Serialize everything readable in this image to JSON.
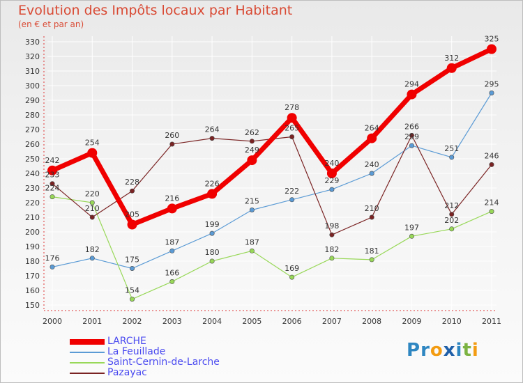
{
  "title": "Evolution des Impôts locaux par Habitant",
  "subtitle": "(en € et par an)",
  "chart_data": {
    "type": "line",
    "title": "Evolution des Impôts locaux par Habitant",
    "subtitle": "(en € et par an)",
    "xlabel": "",
    "ylabel": "",
    "categories": [
      "2000",
      "2001",
      "2002",
      "2003",
      "2004",
      "2005",
      "2006",
      "2007",
      "2008",
      "2009",
      "2010",
      "2011"
    ],
    "ylim": [
      150,
      330
    ],
    "yticks": [
      150,
      160,
      170,
      180,
      190,
      200,
      210,
      220,
      230,
      240,
      250,
      260,
      270,
      280,
      290,
      300,
      310,
      320,
      330
    ],
    "grid": true,
    "legend": "bottom-left",
    "series": [
      {
        "name": "LARCHE",
        "color": "#f00000",
        "values": [
          242,
          254,
          205,
          216,
          226,
          249,
          278,
          240,
          264,
          294,
          312,
          325
        ]
      },
      {
        "name": "La Feuillade",
        "color": "#5b9bd5",
        "values": [
          176,
          182,
          175,
          187,
          199,
          215,
          222,
          229,
          240,
          259,
          251,
          295
        ]
      },
      {
        "name": "Saint-Cernin-de-Larche",
        "color": "#98d858",
        "values": [
          224,
          220,
          154,
          166,
          180,
          187,
          169,
          182,
          181,
          197,
          202,
          214
        ]
      },
      {
        "name": "Pazayac",
        "color": "#7a2323",
        "values": [
          233,
          210,
          228,
          260,
          264,
          262,
          265,
          198,
          210,
          266,
          212,
          246
        ]
      }
    ]
  },
  "logo": {
    "letters": [
      "P",
      "r",
      "o",
      "x",
      "i",
      "t",
      "i"
    ],
    "colors": [
      "#2e86c1",
      "#2e86c1",
      "#f39c12",
      "#1f5fa8",
      "#2e86c1",
      "#7cb342",
      "#f39c12"
    ]
  }
}
